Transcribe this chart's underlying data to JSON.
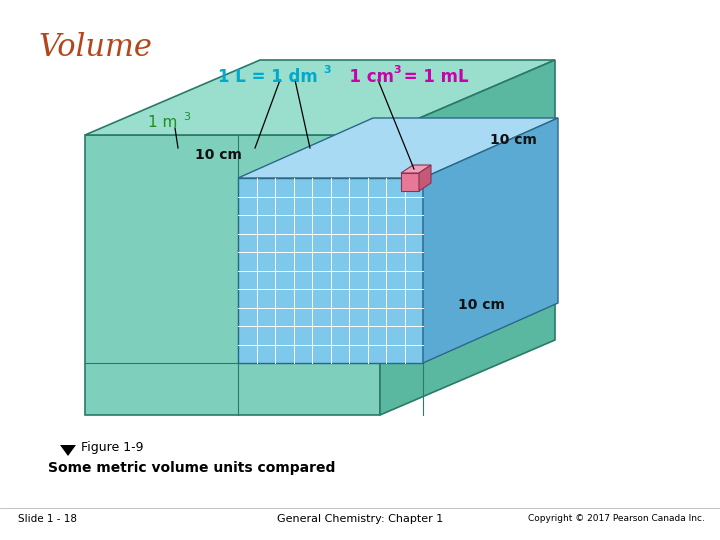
{
  "title": "Volume",
  "title_color": "#b5451b",
  "title_fontsize": 22,
  "bg_color": "#ffffff",
  "eq_color": "#00aacc",
  "eq2_color": "#cc00aa",
  "label_1m3_color": "#228B22",
  "label_color": "#000000",
  "figure_label": "Figure 1-9",
  "figure_caption": "Some metric volume units compared",
  "slide_label": "Slide 1 - 18",
  "center_label": "General Chemistry: Chapter 1",
  "copyright": "Copyright © 2017 Pearson Canada Inc.",
  "large_cube_face_color": "#7ecfbb",
  "large_cube_top_color": "#9adece",
  "large_cube_right_color": "#5ab8a0",
  "small_cube_front_color": "#7ec8ec",
  "small_cube_right_color": "#5aaad4",
  "small_cube_top_color": "#a8daf4",
  "grid_color": "#ffffff",
  "tiny_cube_front_color": "#e87898",
  "tiny_cube_right_color": "#c85878",
  "tiny_cube_top_color": "#f0a0b8",
  "arrow_color": "#000000",
  "large_cube_edge_color": "#2a7a6a",
  "small_cube_edge_color": "#2a6888"
}
